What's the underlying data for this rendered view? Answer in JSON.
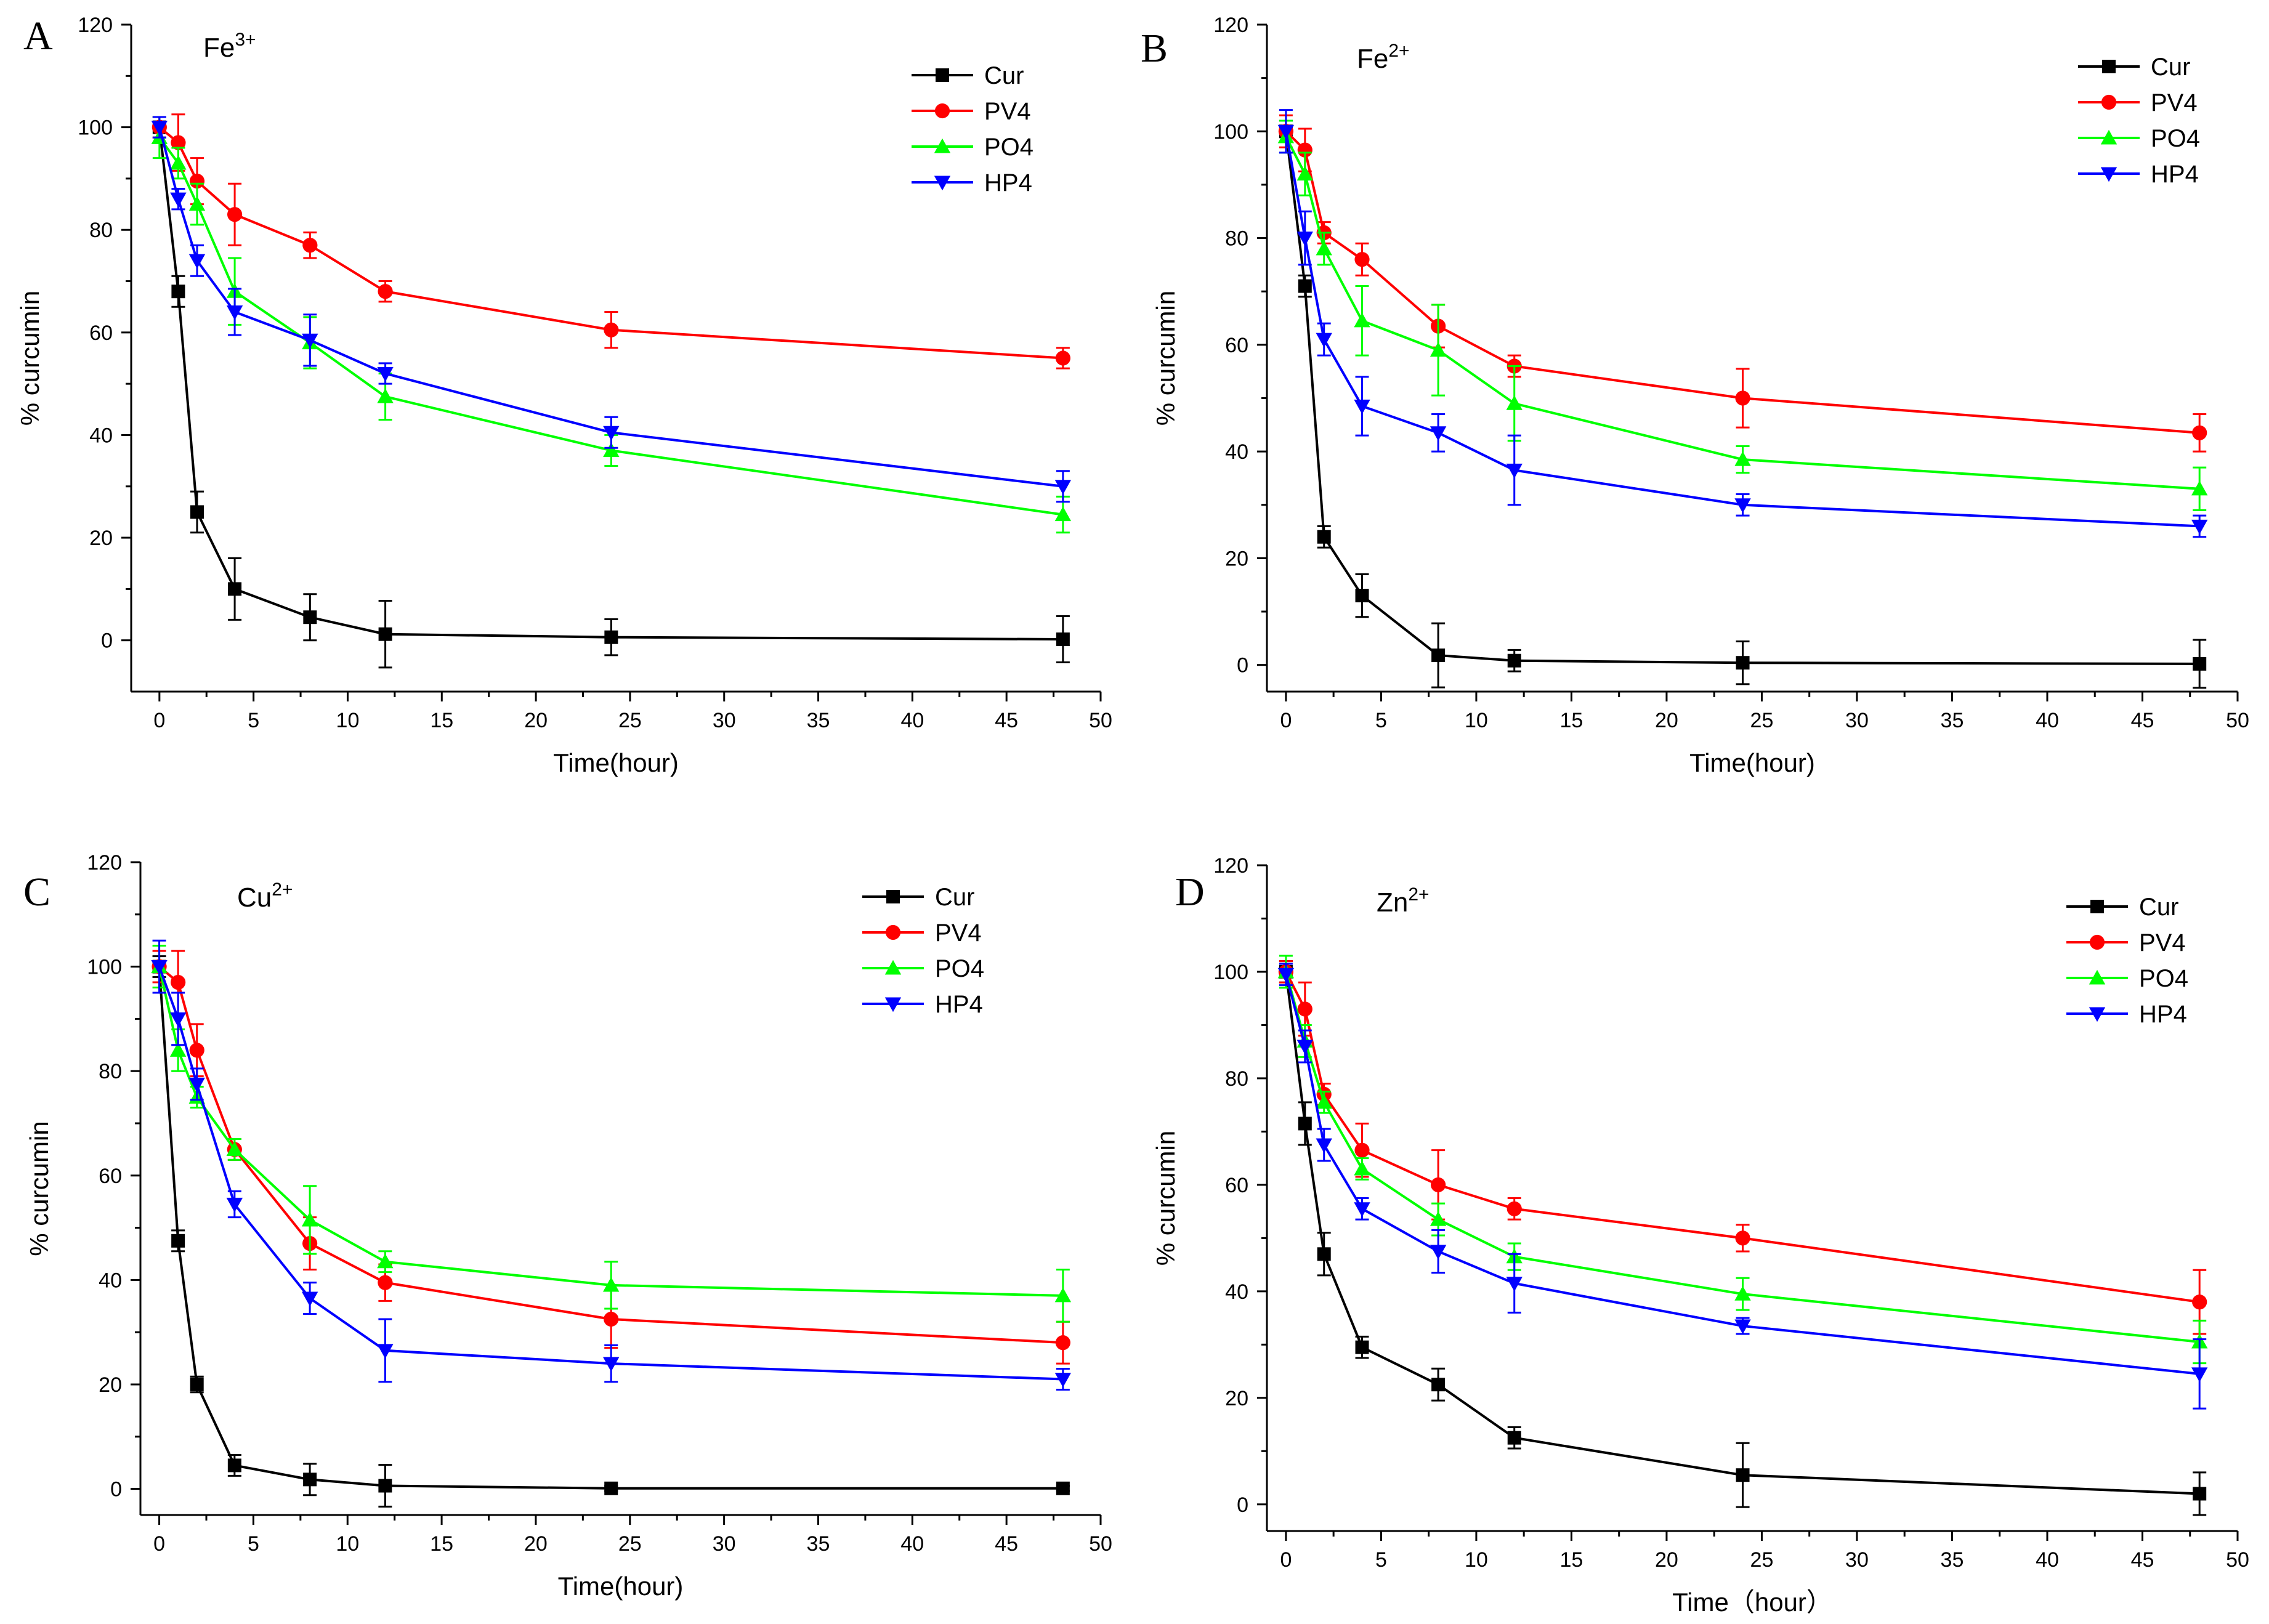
{
  "figure": {
    "background": "#ffffff"
  },
  "series_style": [
    {
      "name": "Cur",
      "color": "#000000",
      "marker": "square"
    },
    {
      "name": "PV4",
      "color": "#ff0000",
      "marker": "circle"
    },
    {
      "name": "PO4",
      "color": "#00ff00",
      "marker": "triangle-up"
    },
    {
      "name": "HP4",
      "color": "#0000ff",
      "marker": "triangle-down"
    }
  ],
  "chart_data": [
    {
      "type": "line",
      "panel_label": "A",
      "title": "Fe",
      "title_superscript": "3+",
      "xlabel": "Time(hour)",
      "ylabel": "% curcumin",
      "xlim": [
        -1.5,
        50
      ],
      "ylim": [
        -10,
        120
      ],
      "xticks": [
        0,
        5,
        10,
        15,
        20,
        25,
        30,
        35,
        40,
        45,
        50
      ],
      "yticks": [
        0,
        20,
        40,
        60,
        80,
        100,
        120
      ],
      "x": [
        0,
        1,
        2,
        4,
        8,
        12,
        24,
        48
      ],
      "legend_position": "top-right",
      "series": [
        {
          "name": "Cur",
          "values": [
            100,
            68,
            25,
            10,
            4.5,
            1.2,
            0.6,
            0.2
          ],
          "errors": [
            2,
            3,
            4,
            6,
            4.5,
            6.5,
            3.5,
            4.5
          ]
        },
        {
          "name": "PV4",
          "values": [
            100,
            97,
            89.5,
            83,
            77,
            68,
            60.5,
            55
          ],
          "errors": [
            2,
            5.5,
            4.5,
            6,
            2.5,
            2,
            3.5,
            2
          ]
        },
        {
          "name": "PO4",
          "values": [
            98,
            93,
            85,
            68,
            58,
            47.5,
            37,
            24.5
          ],
          "errors": [
            4,
            3,
            4,
            6.5,
            5,
            4.5,
            3,
            3.5
          ]
        },
        {
          "name": "HP4",
          "values": [
            100,
            86,
            74,
            64,
            58.5,
            52,
            40.5,
            30
          ],
          "errors": [
            2,
            2,
            3,
            4.5,
            5,
            2,
            3,
            3
          ]
        }
      ]
    },
    {
      "type": "line",
      "panel_label": "B",
      "title": "Fe",
      "title_superscript": "2+",
      "xlabel": "Time(hour)",
      "ylabel": "% curcumin",
      "xlim": [
        -1,
        50
      ],
      "ylim": [
        -5,
        120
      ],
      "xticks": [
        0,
        5,
        10,
        15,
        20,
        25,
        30,
        35,
        40,
        45,
        50
      ],
      "yticks": [
        0,
        20,
        40,
        60,
        80,
        100,
        120
      ],
      "x": [
        0,
        1,
        2,
        4,
        8,
        12,
        24,
        48
      ],
      "legend_position": "top-right",
      "series": [
        {
          "name": "Cur",
          "values": [
            100,
            71,
            24,
            13,
            1.8,
            0.8,
            0.4,
            0.2
          ],
          "errors": [
            2,
            2,
            2,
            4,
            6,
            2,
            4,
            4.5
          ]
        },
        {
          "name": "PV4",
          "values": [
            100,
            96.5,
            81,
            76,
            63.5,
            56,
            50,
            43.5
          ],
          "errors": [
            3,
            4,
            2,
            3,
            4,
            2,
            5.5,
            3.5
          ]
        },
        {
          "name": "PO4",
          "values": [
            99,
            92,
            78,
            64.5,
            59,
            49,
            38.5,
            33
          ],
          "errors": [
            3,
            4,
            3,
            6.5,
            8.5,
            7,
            2.5,
            4
          ]
        },
        {
          "name": "HP4",
          "values": [
            100,
            80,
            61,
            48.5,
            43.5,
            36.5,
            30,
            26
          ],
          "errors": [
            4,
            5,
            3,
            5.5,
            3.5,
            6.5,
            2,
            2
          ]
        }
      ]
    },
    {
      "type": "line",
      "panel_label": "C",
      "title": "Cu",
      "title_superscript": "2+",
      "xlabel": "Time(hour)",
      "ylabel": "% curcumin",
      "xlim": [
        -1,
        50
      ],
      "ylim": [
        -5,
        120
      ],
      "xticks": [
        0,
        5,
        10,
        15,
        20,
        25,
        30,
        35,
        40,
        45,
        50
      ],
      "yticks": [
        0,
        20,
        40,
        60,
        80,
        100,
        120
      ],
      "x": [
        0,
        1,
        2,
        4,
        8,
        12,
        24,
        48
      ],
      "legend_position": "top-right",
      "series": [
        {
          "name": "Cur",
          "values": [
            100,
            47.5,
            20,
            4.5,
            1.8,
            0.6,
            0.1,
            0.1
          ],
          "errors": [
            2,
            2,
            1.5,
            2,
            3,
            4,
            0.5,
            0.5
          ]
        },
        {
          "name": "PV4",
          "values": [
            100,
            97,
            84,
            65,
            47,
            39.5,
            32.5,
            28
          ],
          "errors": [
            3,
            6,
            5,
            2,
            5,
            3.5,
            5.5,
            4
          ]
        },
        {
          "name": "PO4",
          "values": [
            100,
            84,
            75,
            65,
            51.5,
            43.5,
            39,
            37
          ],
          "errors": [
            4,
            4,
            2,
            2,
            6.5,
            2,
            4.5,
            5
          ]
        },
        {
          "name": "HP4",
          "values": [
            100,
            90,
            77.5,
            54.5,
            36.5,
            26.5,
            24,
            21
          ],
          "errors": [
            5,
            5,
            3,
            2.5,
            3,
            6,
            3.5,
            2
          ]
        }
      ]
    },
    {
      "type": "line",
      "panel_label": "D",
      "title": "Zn",
      "title_superscript": "2+",
      "xlabel": "Time（hour）",
      "ylabel": "% curcumin",
      "xlim": [
        -1,
        50
      ],
      "ylim": [
        -5,
        120
      ],
      "xticks": [
        0,
        5,
        10,
        15,
        20,
        25,
        30,
        35,
        40,
        45,
        50
      ],
      "yticks": [
        0,
        20,
        40,
        60,
        80,
        100,
        120
      ],
      "x": [
        0,
        1,
        2,
        4,
        8,
        12,
        24,
        48
      ],
      "legend_position": "top-right",
      "series": [
        {
          "name": "Cur",
          "values": [
            100,
            71.5,
            47,
            29.5,
            22.5,
            12.5,
            5.5,
            2
          ],
          "errors": [
            2,
            4,
            4,
            2,
            3,
            2,
            6,
            4
          ]
        },
        {
          "name": "PV4",
          "values": [
            100,
            93,
            77,
            66.5,
            60,
            55.5,
            50,
            38
          ],
          "errors": [
            2,
            5,
            2,
            5,
            6.5,
            2,
            2.5,
            6
          ]
        },
        {
          "name": "PO4",
          "values": [
            100,
            87,
            75.5,
            63,
            53.5,
            46.5,
            39.5,
            30.5
          ],
          "errors": [
            3,
            3,
            2,
            2,
            3,
            2.5,
            3,
            4
          ]
        },
        {
          "name": "HP4",
          "values": [
            99.5,
            86,
            67.5,
            55.5,
            47.5,
            41.5,
            33.5,
            24.5
          ],
          "errors": [
            2,
            3,
            3,
            2,
            4,
            5.5,
            1.5,
            6.5
          ]
        }
      ]
    }
  ]
}
